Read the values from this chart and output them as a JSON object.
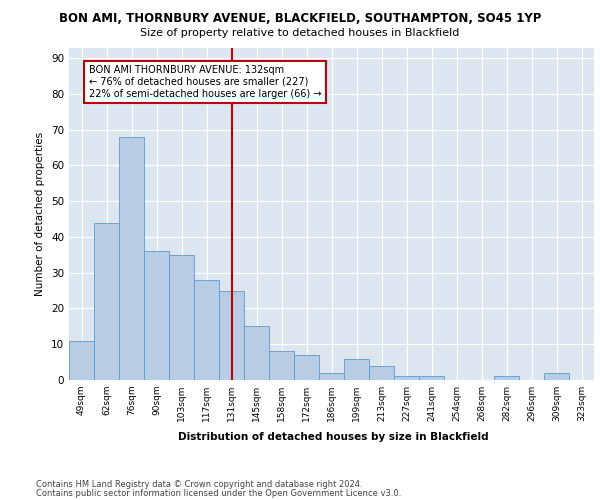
{
  "title_line1": "BON AMI, THORNBURY AVENUE, BLACKFIELD, SOUTHAMPTON, SO45 1YP",
  "title_line2": "Size of property relative to detached houses in Blackfield",
  "xlabel": "Distribution of detached houses by size in Blackfield",
  "ylabel": "Number of detached properties",
  "categories": [
    "49sqm",
    "62sqm",
    "76sqm",
    "90sqm",
    "103sqm",
    "117sqm",
    "131sqm",
    "145sqm",
    "158sqm",
    "172sqm",
    "186sqm",
    "199sqm",
    "213sqm",
    "227sqm",
    "241sqm",
    "254sqm",
    "268sqm",
    "282sqm",
    "296sqm",
    "309sqm",
    "323sqm"
  ],
  "values": [
    11,
    44,
    68,
    36,
    35,
    28,
    25,
    15,
    8,
    7,
    2,
    6,
    4,
    1,
    1,
    0,
    0,
    1,
    0,
    2,
    0
  ],
  "bar_color": "#b8cce4",
  "bar_edge_color": "#5b9bd5",
  "plot_bg_color": "#dce6f1",
  "vline_x_index": 6,
  "vline_color": "#c00000",
  "annotation_line1": "BON AMI THORNBURY AVENUE: 132sqm",
  "annotation_line2": "← 76% of detached houses are smaller (227)",
  "annotation_line3": "22% of semi-detached houses are larger (66) →",
  "annotation_box_color": "#c00000",
  "ylim": [
    0,
    93
  ],
  "yticks": [
    0,
    10,
    20,
    30,
    40,
    50,
    60,
    70,
    80,
    90
  ],
  "footnote_line1": "Contains HM Land Registry data © Crown copyright and database right 2024.",
  "footnote_line2": "Contains public sector information licensed under the Open Government Licence v3.0."
}
